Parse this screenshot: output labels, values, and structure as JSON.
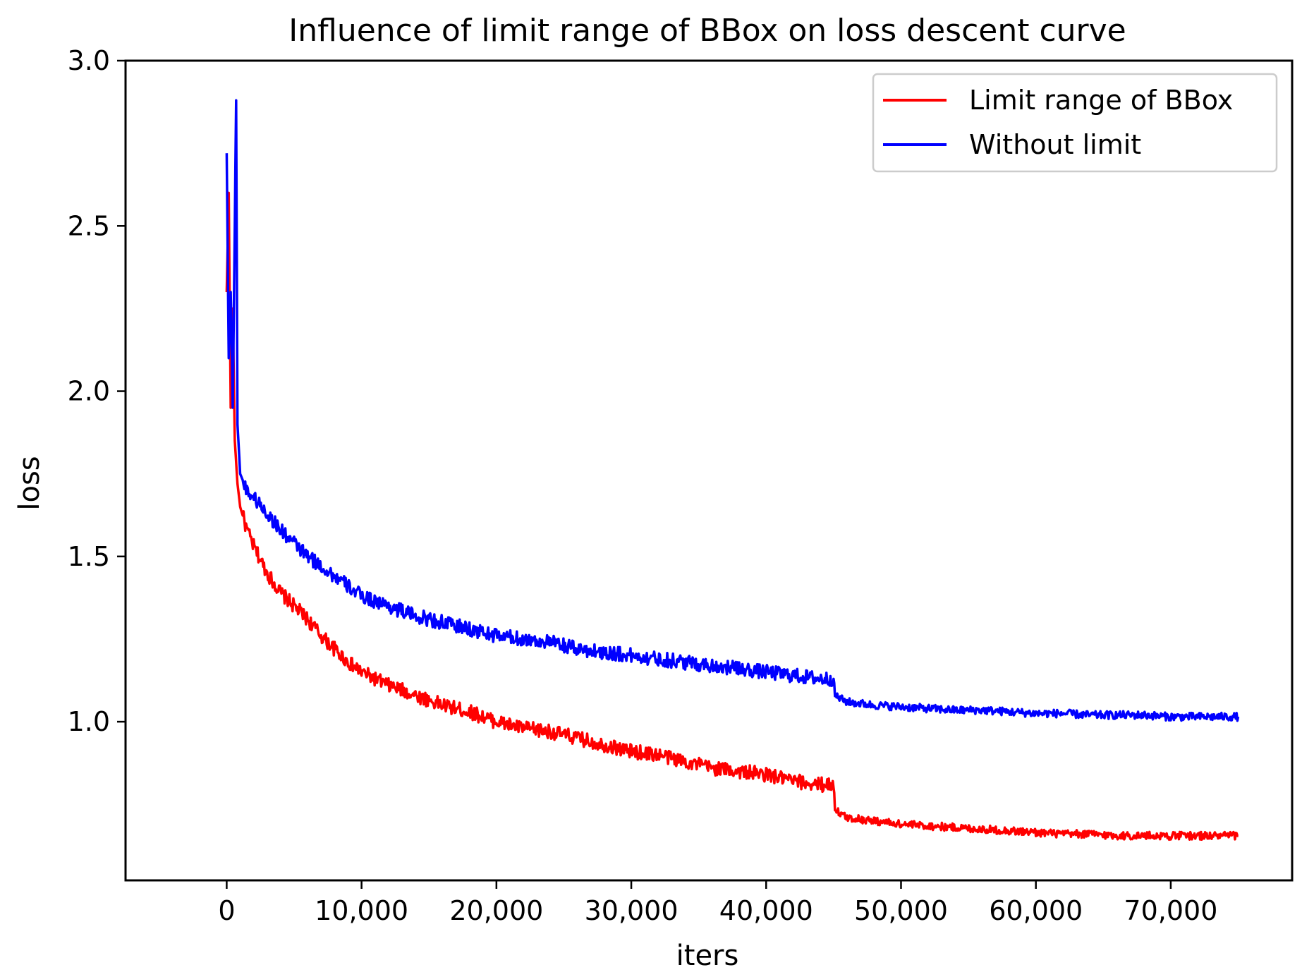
{
  "chart_data": {
    "type": "line",
    "title": "Influence of limit range of BBox on loss descent curve",
    "xlabel": "iters",
    "ylabel": "loss",
    "xlim": [
      -7500,
      79000
    ],
    "ylim": [
      0.52,
      3.0
    ],
    "x_ticks": [
      0,
      10000,
      20000,
      30000,
      40000,
      50000,
      60000,
      70000
    ],
    "x_tick_labels": [
      "0",
      "10,000",
      "20,000",
      "30,000",
      "40,000",
      "50,000",
      "60,000",
      "70,000"
    ],
    "y_ticks": [
      1.0,
      1.5,
      2.0,
      2.5,
      3.0
    ],
    "y_tick_labels": [
      "1.0",
      "1.5",
      "2.0",
      "2.5",
      "3.0"
    ],
    "grid": false,
    "legend": "top-right",
    "series": [
      {
        "name": "Limit range of BBox",
        "color": "#ff0000",
        "x": [
          0,
          150,
          300,
          450,
          600,
          800,
          1000,
          1500,
          2000,
          3000,
          4000,
          5000,
          6000,
          7000,
          8000,
          9000,
          10000,
          12000,
          14000,
          16000,
          18000,
          20000,
          22000,
          24000,
          26000,
          28000,
          30000,
          32000,
          34000,
          36000,
          38000,
          40000,
          42000,
          44000,
          45000,
          45100,
          45500,
          46000,
          48000,
          50000,
          52000,
          54000,
          56000,
          58000,
          60000,
          62000,
          64000,
          66000,
          68000,
          70000,
          72000,
          74000,
          75000
        ],
        "y": [
          2.3,
          2.6,
          1.95,
          2.25,
          1.85,
          1.72,
          1.65,
          1.58,
          1.53,
          1.45,
          1.39,
          1.35,
          1.31,
          1.26,
          1.22,
          1.18,
          1.15,
          1.11,
          1.08,
          1.05,
          1.03,
          1.0,
          0.98,
          0.97,
          0.95,
          0.93,
          0.91,
          0.9,
          0.88,
          0.86,
          0.85,
          0.84,
          0.82,
          0.81,
          0.81,
          0.74,
          0.72,
          0.71,
          0.7,
          0.69,
          0.685,
          0.68,
          0.675,
          0.67,
          0.665,
          0.66,
          0.66,
          0.655,
          0.655,
          0.655,
          0.655,
          0.655,
          0.655
        ]
      },
      {
        "name": "Without limit",
        "color": "#0000ff",
        "x": [
          0,
          150,
          300,
          450,
          600,
          700,
          800,
          1000,
          1500,
          2000,
          3000,
          4000,
          5000,
          6000,
          7000,
          8000,
          9000,
          10000,
          12000,
          14000,
          16000,
          18000,
          20000,
          22000,
          24000,
          26000,
          28000,
          30000,
          32000,
          34000,
          36000,
          38000,
          40000,
          42000,
          44000,
          45000,
          45100,
          45500,
          46000,
          48000,
          50000,
          52000,
          54000,
          56000,
          58000,
          60000,
          62000,
          64000,
          66000,
          68000,
          70000,
          72000,
          74000,
          75000
        ],
        "y": [
          2.72,
          2.1,
          2.3,
          1.95,
          2.5,
          2.88,
          1.9,
          1.75,
          1.7,
          1.68,
          1.63,
          1.58,
          1.54,
          1.5,
          1.47,
          1.44,
          1.41,
          1.38,
          1.35,
          1.32,
          1.3,
          1.28,
          1.26,
          1.25,
          1.24,
          1.22,
          1.21,
          1.2,
          1.19,
          1.18,
          1.17,
          1.16,
          1.15,
          1.14,
          1.13,
          1.13,
          1.08,
          1.07,
          1.06,
          1.05,
          1.045,
          1.04,
          1.035,
          1.035,
          1.03,
          1.025,
          1.025,
          1.02,
          1.02,
          1.02,
          1.015,
          1.015,
          1.015,
          1.015
        ]
      }
    ]
  }
}
